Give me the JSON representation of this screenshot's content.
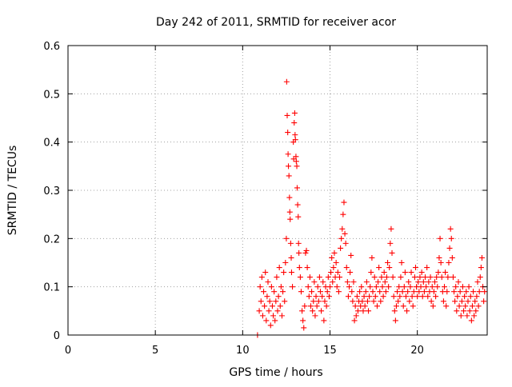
{
  "chart_data": {
    "type": "scatter",
    "title": "Day 242 of 2011, SRMTID for receiver acor",
    "xlabel": "GPS time / hours",
    "ylabel": "SRMTID / TECUs",
    "xlim": [
      0,
      24
    ],
    "ylim": [
      0,
      0.6
    ],
    "xticks": [
      0,
      5,
      10,
      15,
      20
    ],
    "xtick_labels": [
      "0",
      "5",
      "10",
      "15",
      "20"
    ],
    "yticks": [
      0,
      0.1,
      0.2,
      0.3,
      0.4,
      0.5,
      0.6
    ],
    "ytick_labels": [
      "0",
      "0.1",
      "0.2",
      "0.3",
      "0.4",
      "0.5",
      "0.6"
    ],
    "grid": true,
    "marker": "+",
    "color": "#ff0000",
    "series": [
      {
        "name": "acor",
        "points": [
          [
            10.85,
            0.0
          ],
          [
            10.95,
            0.05
          ],
          [
            11.0,
            0.1
          ],
          [
            11.05,
            0.07
          ],
          [
            11.1,
            0.12
          ],
          [
            11.15,
            0.04
          ],
          [
            11.2,
            0.09
          ],
          [
            11.25,
            0.06
          ],
          [
            11.3,
            0.13
          ],
          [
            11.35,
            0.03
          ],
          [
            11.4,
            0.08
          ],
          [
            11.45,
            0.11
          ],
          [
            11.5,
            0.05
          ],
          [
            11.55,
            0.07
          ],
          [
            11.6,
            0.02
          ],
          [
            11.65,
            0.1
          ],
          [
            11.7,
            0.06
          ],
          [
            11.75,
            0.04
          ],
          [
            11.8,
            0.09
          ],
          [
            11.85,
            0.03
          ],
          [
            11.9,
            0.07
          ],
          [
            11.95,
            0.12
          ],
          [
            12.0,
            0.05
          ],
          [
            12.05,
            0.08
          ],
          [
            12.1,
            0.14
          ],
          [
            12.15,
            0.06
          ],
          [
            12.2,
            0.1
          ],
          [
            12.25,
            0.04
          ],
          [
            12.3,
            0.09
          ],
          [
            12.35,
            0.13
          ],
          [
            12.4,
            0.07
          ],
          [
            12.45,
            0.15
          ],
          [
            12.5,
            0.2
          ],
          [
            12.52,
            0.525
          ],
          [
            12.55,
            0.455
          ],
          [
            12.58,
            0.42
          ],
          [
            12.6,
            0.375
          ],
          [
            12.62,
            0.35
          ],
          [
            12.65,
            0.33
          ],
          [
            12.68,
            0.285
          ],
          [
            12.7,
            0.255
          ],
          [
            12.72,
            0.24
          ],
          [
            12.75,
            0.19
          ],
          [
            12.78,
            0.16
          ],
          [
            12.8,
            0.13
          ],
          [
            12.85,
            0.1
          ],
          [
            12.9,
            0.4
          ],
          [
            12.92,
            0.365
          ],
          [
            12.95,
            0.44
          ],
          [
            12.98,
            0.46
          ],
          [
            13.0,
            0.415
          ],
          [
            13.02,
            0.405
          ],
          [
            13.05,
            0.37
          ],
          [
            13.07,
            0.36
          ],
          [
            13.1,
            0.35
          ],
          [
            13.12,
            0.305
          ],
          [
            13.15,
            0.27
          ],
          [
            13.18,
            0.245
          ],
          [
            13.2,
            0.19
          ],
          [
            13.22,
            0.17
          ],
          [
            13.25,
            0.14
          ],
          [
            13.3,
            0.12
          ],
          [
            13.35,
            0.09
          ],
          [
            13.4,
            0.05
          ],
          [
            13.45,
            0.03
          ],
          [
            13.5,
            0.015
          ],
          [
            13.55,
            0.06
          ],
          [
            13.6,
            0.17
          ],
          [
            13.65,
            0.175
          ],
          [
            13.7,
            0.14
          ],
          [
            13.75,
            0.1
          ],
          [
            13.8,
            0.08
          ],
          [
            13.85,
            0.12
          ],
          [
            13.9,
            0.06
          ],
          [
            13.95,
            0.09
          ],
          [
            14.0,
            0.05
          ],
          [
            14.05,
            0.07
          ],
          [
            14.1,
            0.11
          ],
          [
            14.15,
            0.04
          ],
          [
            14.2,
            0.08
          ],
          [
            14.25,
            0.06
          ],
          [
            14.3,
            0.1
          ],
          [
            14.35,
            0.07
          ],
          [
            14.4,
            0.12
          ],
          [
            14.45,
            0.09
          ],
          [
            14.5,
            0.05
          ],
          [
            14.55,
            0.08
          ],
          [
            14.6,
            0.11
          ],
          [
            14.65,
            0.03
          ],
          [
            14.7,
            0.07
          ],
          [
            14.75,
            0.1
          ],
          [
            14.8,
            0.06
          ],
          [
            14.85,
            0.09
          ],
          [
            14.9,
            0.12
          ],
          [
            14.95,
            0.08
          ],
          [
            15.0,
            0.1
          ],
          [
            15.05,
            0.13
          ],
          [
            15.1,
            0.16
          ],
          [
            15.15,
            0.11
          ],
          [
            15.2,
            0.14
          ],
          [
            15.25,
            0.17
          ],
          [
            15.3,
            0.12
          ],
          [
            15.35,
            0.15
          ],
          [
            15.4,
            0.1
          ],
          [
            15.45,
            0.13
          ],
          [
            15.5,
            0.09
          ],
          [
            15.55,
            0.12
          ],
          [
            15.6,
            0.18
          ],
          [
            15.65,
            0.2
          ],
          [
            15.7,
            0.22
          ],
          [
            15.75,
            0.25
          ],
          [
            15.8,
            0.275
          ],
          [
            15.85,
            0.21
          ],
          [
            15.9,
            0.19
          ],
          [
            15.95,
            0.14
          ],
          [
            16.0,
            0.11
          ],
          [
            16.05,
            0.08
          ],
          [
            16.1,
            0.1
          ],
          [
            16.15,
            0.13
          ],
          [
            16.2,
            0.165
          ],
          [
            16.25,
            0.09
          ],
          [
            16.3,
            0.07
          ],
          [
            16.35,
            0.11
          ],
          [
            16.4,
            0.03
          ],
          [
            16.45,
            0.06
          ],
          [
            16.5,
            0.04
          ],
          [
            16.55,
            0.08
          ],
          [
            16.6,
            0.05
          ],
          [
            16.65,
            0.07
          ],
          [
            16.7,
            0.09
          ],
          [
            16.75,
            0.06
          ],
          [
            16.8,
            0.1
          ],
          [
            16.85,
            0.07
          ],
          [
            16.9,
            0.05
          ],
          [
            16.95,
            0.08
          ],
          [
            17.0,
            0.06
          ],
          [
            17.05,
            0.09
          ],
          [
            17.1,
            0.11
          ],
          [
            17.15,
            0.07
          ],
          [
            17.2,
            0.05
          ],
          [
            17.25,
            0.08
          ],
          [
            17.3,
            0.1
          ],
          [
            17.35,
            0.13
          ],
          [
            17.4,
            0.16
          ],
          [
            17.45,
            0.09
          ],
          [
            17.5,
            0.07
          ],
          [
            17.55,
            0.12
          ],
          [
            17.6,
            0.08
          ],
          [
            17.65,
            0.1
          ],
          [
            17.7,
            0.06
          ],
          [
            17.75,
            0.11
          ],
          [
            17.8,
            0.14
          ],
          [
            17.85,
            0.09
          ],
          [
            17.9,
            0.07
          ],
          [
            17.95,
            0.12
          ],
          [
            18.0,
            0.1
          ],
          [
            18.05,
            0.08
          ],
          [
            18.1,
            0.13
          ],
          [
            18.15,
            0.11
          ],
          [
            18.2,
            0.09
          ],
          [
            18.25,
            0.12
          ],
          [
            18.3,
            0.15
          ],
          [
            18.35,
            0.1
          ],
          [
            18.4,
            0.14
          ],
          [
            18.45,
            0.19
          ],
          [
            18.5,
            0.22
          ],
          [
            18.55,
            0.17
          ],
          [
            18.6,
            0.12
          ],
          [
            18.65,
            0.08
          ],
          [
            18.7,
            0.05
          ],
          [
            18.75,
            0.03
          ],
          [
            18.8,
            0.06
          ],
          [
            18.85,
            0.09
          ],
          [
            18.9,
            0.07
          ],
          [
            18.95,
            0.1
          ],
          [
            19.0,
            0.08
          ],
          [
            19.05,
            0.12
          ],
          [
            19.1,
            0.15
          ],
          [
            19.15,
            0.09
          ],
          [
            19.2,
            0.06
          ],
          [
            19.25,
            0.1
          ],
          [
            19.3,
            0.13
          ],
          [
            19.35,
            0.08
          ],
          [
            19.4,
            0.05
          ],
          [
            19.45,
            0.09
          ],
          [
            19.5,
            0.11
          ],
          [
            19.55,
            0.07
          ],
          [
            19.6,
            0.1
          ],
          [
            19.65,
            0.13
          ],
          [
            19.7,
            0.08
          ],
          [
            19.75,
            0.06
          ],
          [
            19.8,
            0.09
          ],
          [
            19.85,
            0.12
          ],
          [
            19.9,
            0.14
          ],
          [
            19.95,
            0.1
          ],
          [
            20.0,
            0.08
          ],
          [
            20.05,
            0.11
          ],
          [
            20.1,
            0.09
          ],
          [
            20.15,
            0.12
          ],
          [
            20.2,
            0.1
          ],
          [
            20.25,
            0.13
          ],
          [
            20.3,
            0.08
          ],
          [
            20.35,
            0.11
          ],
          [
            20.4,
            0.09
          ],
          [
            20.45,
            0.12
          ],
          [
            20.5,
            0.1
          ],
          [
            20.55,
            0.14
          ],
          [
            20.6,
            0.08
          ],
          [
            20.65,
            0.11
          ],
          [
            20.7,
            0.09
          ],
          [
            20.75,
            0.12
          ],
          [
            20.8,
            0.07
          ],
          [
            20.85,
            0.1
          ],
          [
            20.9,
            0.06
          ],
          [
            20.95,
            0.09
          ],
          [
            21.0,
            0.11
          ],
          [
            21.05,
            0.08
          ],
          [
            21.1,
            0.12
          ],
          [
            21.15,
            0.1
          ],
          [
            21.2,
            0.13
          ],
          [
            21.25,
            0.16
          ],
          [
            21.3,
            0.2
          ],
          [
            21.35,
            0.15
          ],
          [
            21.4,
            0.12
          ],
          [
            21.45,
            0.09
          ],
          [
            21.5,
            0.07
          ],
          [
            21.55,
            0.1
          ],
          [
            21.6,
            0.13
          ],
          [
            21.65,
            0.06
          ],
          [
            21.7,
            0.09
          ],
          [
            21.75,
            0.12
          ],
          [
            21.8,
            0.15
          ],
          [
            21.85,
            0.18
          ],
          [
            21.9,
            0.22
          ],
          [
            21.95,
            0.2
          ],
          [
            22.0,
            0.16
          ],
          [
            22.05,
            0.12
          ],
          [
            22.1,
            0.09
          ],
          [
            22.15,
            0.07
          ],
          [
            22.2,
            0.1
          ],
          [
            22.25,
            0.05
          ],
          [
            22.3,
            0.08
          ],
          [
            22.35,
            0.11
          ],
          [
            22.4,
            0.06
          ],
          [
            22.45,
            0.09
          ],
          [
            22.5,
            0.04
          ],
          [
            22.55,
            0.07
          ],
          [
            22.6,
            0.1
          ],
          [
            22.65,
            0.05
          ],
          [
            22.7,
            0.08
          ],
          [
            22.75,
            0.06
          ],
          [
            22.8,
            0.09
          ],
          [
            22.85,
            0.04
          ],
          [
            22.9,
            0.07
          ],
          [
            22.95,
            0.1
          ],
          [
            23.0,
            0.05
          ],
          [
            23.05,
            0.08
          ],
          [
            23.1,
            0.03
          ],
          [
            23.15,
            0.06
          ],
          [
            23.2,
            0.09
          ],
          [
            23.25,
            0.04
          ],
          [
            23.3,
            0.07
          ],
          [
            23.35,
            0.05
          ],
          [
            23.4,
            0.08
          ],
          [
            23.45,
            0.11
          ],
          [
            23.5,
            0.06
          ],
          [
            23.55,
            0.09
          ],
          [
            23.6,
            0.12
          ],
          [
            23.65,
            0.14
          ],
          [
            23.7,
            0.16
          ],
          [
            23.75,
            0.1
          ],
          [
            23.8,
            0.07
          ],
          [
            23.85,
            0.09
          ]
        ]
      }
    ]
  }
}
